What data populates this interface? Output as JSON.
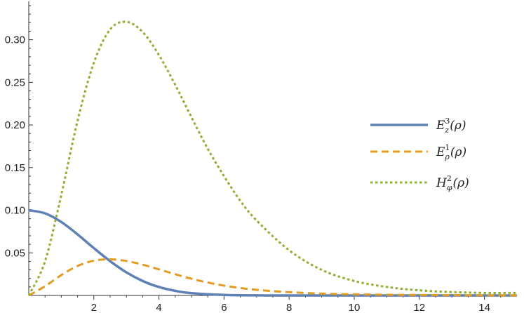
{
  "chart_data": {
    "type": "line",
    "title": "",
    "xlabel": "",
    "ylabel": "",
    "xlim": [
      0,
      15
    ],
    "ylim": [
      0,
      0.34
    ],
    "x_major_ticks": [
      2,
      4,
      6,
      8,
      10,
      12,
      14
    ],
    "x_tick_labels": [
      "2",
      "4",
      "6",
      "8",
      "10",
      "12",
      "14"
    ],
    "y_major_ticks": [
      0.05,
      0.1,
      0.15,
      0.2,
      0.25,
      0.3
    ],
    "y_tick_labels": [
      "0.05",
      "0.10",
      "0.15",
      "0.20",
      "0.25",
      "0.30"
    ],
    "grid": false,
    "legend_placement": "right",
    "series": [
      {
        "name": "E_z^3(ρ)",
        "legend": {
          "base": "E",
          "sub": "z",
          "sup": "3",
          "arg": "(ρ)"
        },
        "color": "#5e81b5",
        "dash": "solid",
        "x": [
          0,
          0.5,
          1.0,
          1.5,
          2.0,
          2.5,
          3.0,
          3.5,
          4.0,
          4.5,
          5.0,
          6.0,
          7.0,
          8.0,
          10.0,
          15.0
        ],
        "y": [
          0.1,
          0.0963,
          0.0862,
          0.0716,
          0.0555,
          0.0402,
          0.0271,
          0.017,
          0.0099,
          0.0054,
          0.0027,
          0.0006,
          0.0001,
          0.0,
          0.0,
          0.0
        ]
      },
      {
        "name": "E_ρ^1(ρ)",
        "legend": {
          "base": "E",
          "sub": "ρ",
          "sup": "1",
          "arg": "(ρ)"
        },
        "color": "#e19c24",
        "dash": "dashed",
        "x": [
          0,
          0.5,
          1.0,
          1.5,
          2.0,
          2.5,
          3.0,
          3.5,
          4.0,
          5.0,
          6.0,
          7.0,
          8.0,
          9.0,
          10.0,
          11.0,
          12.0,
          13.0,
          14.0,
          15.0
        ],
        "y": [
          0.0,
          0.0108,
          0.0239,
          0.0346,
          0.0408,
          0.0424,
          0.0404,
          0.0361,
          0.0306,
          0.0196,
          0.0115,
          0.0066,
          0.0039,
          0.0022,
          0.0013,
          0.0008,
          0.0005,
          0.0003,
          0.0002,
          0.0001
        ]
      },
      {
        "name": "H_φ^2(ρ)",
        "legend": {
          "base": "H",
          "sub": "φ",
          "sup": "2",
          "arg": "(ρ)"
        },
        "color": "#8fb032",
        "dash": "dotted",
        "x": [
          0,
          0.5,
          1.0,
          1.5,
          2.0,
          2.5,
          3.0,
          3.5,
          4.0,
          4.5,
          5.0,
          5.5,
          6.0,
          6.5,
          7.0,
          8.0,
          9.0,
          10.0,
          11.0,
          12.0,
          13.0,
          14.0,
          15.0
        ],
        "y": [
          0.0,
          0.04,
          0.118,
          0.205,
          0.273,
          0.312,
          0.321,
          0.309,
          0.282,
          0.247,
          0.209,
          0.172,
          0.14,
          0.111,
          0.088,
          0.053,
          0.03,
          0.017,
          0.01,
          0.006,
          0.004,
          0.003,
          0.003
        ]
      }
    ]
  }
}
